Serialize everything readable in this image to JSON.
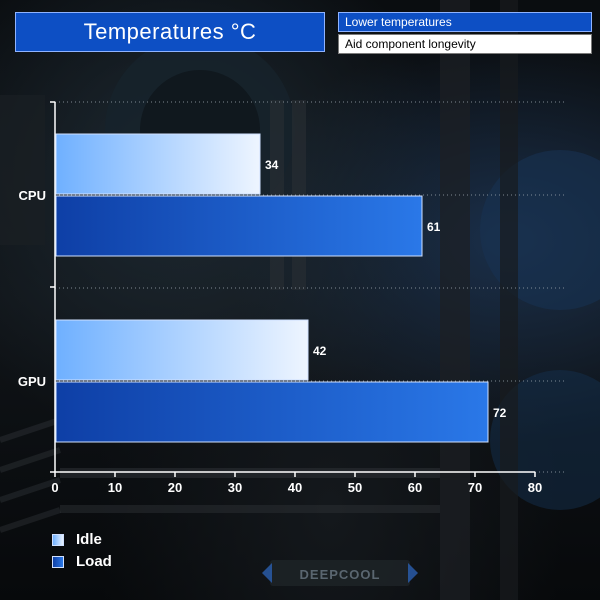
{
  "header": {
    "title": "Temperatures °C",
    "notes": [
      "Lower temperatures",
      "Aid component longevity"
    ]
  },
  "colors": {
    "title_bg": "#0d4fc4",
    "idle_bar_light": "#e8f2ff",
    "idle_bar_dark": "#6fb0ff",
    "load_bar_light": "#2a78e8",
    "load_bar_dark": "#0e3fa6"
  },
  "background": {
    "logo_text": "DEEPCOOL"
  },
  "chart_data": {
    "type": "bar",
    "orientation": "horizontal",
    "categories": [
      "CPU",
      "GPU"
    ],
    "series": [
      {
        "name": "Idle",
        "values": [
          34,
          42
        ]
      },
      {
        "name": "Load",
        "values": [
          61,
          72
        ]
      }
    ],
    "xlim": [
      0,
      80
    ],
    "xticks": [
      0,
      10,
      20,
      30,
      40,
      50,
      60,
      70,
      80
    ],
    "grid": true,
    "legend_position": "bottom-left"
  }
}
